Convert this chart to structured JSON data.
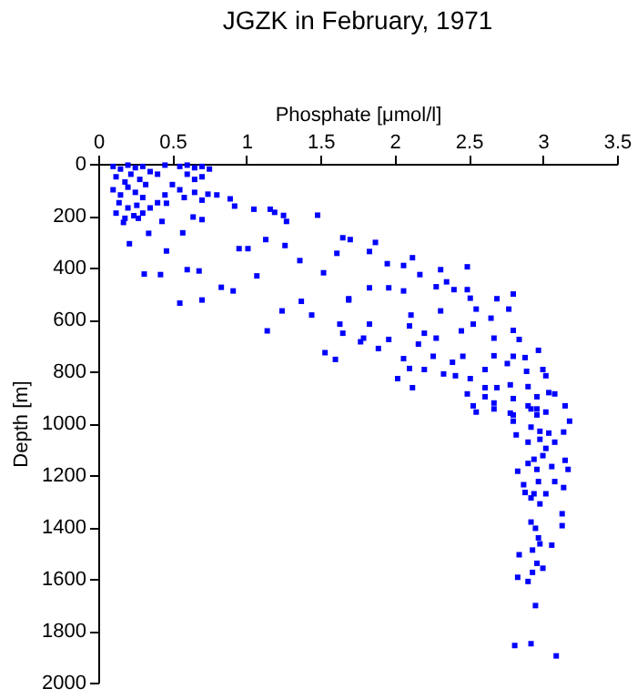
{
  "chart_data": {
    "type": "scatter",
    "title": "JGZK in February, 1971",
    "xlabel": "Phosphate [μmol/l]",
    "ylabel": "Depth [m]",
    "xlim": [
      0,
      3.5
    ],
    "xticks": [
      0,
      0.5,
      1,
      1.5,
      2,
      2.5,
      3,
      3.5
    ],
    "ylim": [
      2000,
      0
    ],
    "yticks": [
      0,
      200,
      400,
      600,
      800,
      1000,
      1200,
      1400,
      1600,
      1800,
      2000
    ],
    "grid": false,
    "legend": false,
    "marker": "square",
    "series": [
      {
        "color": "#0000ff",
        "x": [
          0.1,
          0.15,
          0.2,
          0.25,
          0.3,
          0.35,
          0.12,
          0.18,
          0.22,
          0.28,
          0.32,
          0.1,
          0.15,
          0.2,
          0.25,
          0.3,
          0.14,
          0.2,
          0.26,
          0.12,
          0.18,
          0.24,
          0.3,
          0.35,
          0.4,
          0.45,
          0.4,
          0.55,
          0.6,
          0.65,
          0.7,
          0.75,
          0.6,
          0.65,
          0.7,
          0.5,
          0.55,
          0.45,
          0.58,
          0.65,
          0.7,
          0.8,
          0.17,
          0.27,
          0.43,
          0.34,
          0.46,
          0.64,
          0.7,
          0.74,
          0.89,
          0.92,
          1.05,
          1.16,
          1.19,
          1.27,
          1.25,
          0.21,
          0.31,
          0.42,
          0.46,
          0.57,
          0.55,
          0.6,
          0.68,
          0.7,
          0.83,
          0.91,
          0.95,
          1.01,
          1.07,
          1.13,
          1.14,
          1.24,
          1.26,
          1.36,
          1.37,
          1.48,
          1.44,
          1.53,
          1.6,
          1.61,
          1.65,
          1.52,
          1.69,
          1.65,
          1.63,
          1.77,
          1.7,
          1.87,
          1.83,
          1.95,
          2.06,
          2.12,
          2.17,
          2.31,
          2.49,
          2.35,
          2.28,
          2.4,
          2.49,
          1.83,
          1.96,
          2.06,
          1.69,
          2.11,
          2.31,
          2.51,
          2.55,
          2.69,
          2.8,
          2.77,
          2.65,
          2.53,
          2.45,
          1.83,
          2.1,
          2.2,
          2.28,
          1.79,
          1.89,
          1.96,
          2.06,
          2.16,
          2.26,
          2.39,
          2.46,
          2.67,
          2.8,
          2.84,
          2.97,
          2.8,
          2.88,
          2.67,
          2.76,
          2.61,
          2.89,
          3.0,
          3.02,
          2.02,
          2.1,
          2.2,
          2.33,
          2.41,
          2.12,
          2.51,
          2.61,
          2.69,
          2.78,
          2.9,
          2.49,
          2.61,
          2.67,
          2.8,
          2.96,
          3.08,
          3.15,
          2.53,
          2.55,
          2.8,
          2.9,
          2.96,
          3.02,
          2.67,
          2.78,
          2.8,
          3.04,
          3.18,
          2.92,
          2.96,
          2.92,
          2.98,
          3.04,
          3.14,
          2.82,
          2.9,
          2.98,
          3.08,
          3.02,
          2.94,
          3.0,
          3.06,
          3.15,
          3.17,
          2.9,
          2.96,
          2.83,
          3.08,
          2.97,
          2.87,
          2.88,
          2.94,
          3.02,
          3.14,
          2.92,
          2.98,
          3.13,
          2.92,
          2.95,
          3.13,
          2.97,
          2.98,
          3.06,
          2.93,
          2.84,
          2.96,
          3.0,
          2.93,
          2.83,
          2.9,
          2.95,
          2.81,
          2.92,
          3.09
        ],
        "values": [
          10,
          20,
          5,
          15,
          10,
          30,
          50,
          70,
          40,
          60,
          80,
          100,
          120,
          90,
          110,
          130,
          150,
          170,
          160,
          190,
          210,
          200,
          190,
          170,
          150,
          5,
          40,
          10,
          5,
          15,
          10,
          20,
          40,
          60,
          50,
          80,
          100,
          120,
          130,
          110,
          140,
          120,
          226,
          210,
          222,
          268,
          152,
          205,
          215,
          117,
          135,
          163,
          175,
          175,
          187,
          222,
          199,
          308,
          425,
          427,
          336,
          266,
          537,
          408,
          413,
          525,
          476,
          490,
          327,
          327,
          432,
          292,
          644,
          567,
          315,
          373,
          530,
          198,
          583,
          728,
          754,
          345,
          285,
          420,
          520,
          653,
          618,
          686,
          292,
          303,
          338,
          385,
          392,
          362,
          427,
          408,
          397,
          455,
          474,
          485,
          485,
          478,
          478,
          490,
          525,
          583,
          567,
          518,
          560,
          520,
          502,
          560,
          595,
          618,
          644,
          618,
          625,
          653,
          672,
          672,
          712,
          677,
          751,
          695,
          742,
          765,
          742,
          672,
          642,
          677,
          719,
          742,
          747,
          740,
          770,
          793,
          800,
          793,
          817,
          828,
          789,
          793,
          810,
          817,
          863,
          828,
          863,
          863,
          852,
          859,
          887,
          898,
          922,
          905,
          898,
          887,
          933,
          933,
          957,
          968,
          933,
          945,
          957,
          945,
          961,
          992,
          882,
          992,
          945,
          968,
          1015,
          1031,
          1038,
          1034,
          1045,
          1073,
          1062,
          1073,
          1097,
          1139,
          1125,
          1167,
          1143,
          1178,
          1155,
          1178,
          1185,
          1225,
          1225,
          1237,
          1267,
          1272,
          1272,
          1248,
          1288,
          1311,
          1349,
          1381,
          1405,
          1395,
          1442,
          1465,
          1470,
          1489,
          1507,
          1540,
          1559,
          1575,
          1594,
          1610,
          1703,
          1857,
          1850,
          1897
        ]
      }
    ]
  }
}
